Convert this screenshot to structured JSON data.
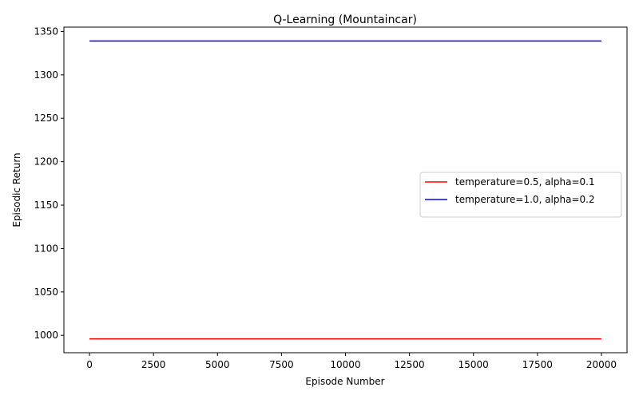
{
  "chart_data": {
    "type": "line",
    "title": "Q-Learning (Mountaincar)",
    "xlabel": "Episode Number",
    "ylabel": "Episodic Return",
    "xlim": [
      -1000,
      21000
    ],
    "ylim": [
      980,
      1355
    ],
    "x_ticks": [
      0,
      2500,
      5000,
      7500,
      10000,
      12500,
      15000,
      17500,
      20000
    ],
    "y_ticks": [
      1000,
      1050,
      1100,
      1150,
      1200,
      1250,
      1300,
      1350
    ],
    "grid": false,
    "legend_position": "center-right",
    "series": [
      {
        "name": "temperature=0.5, alpha=0.1",
        "color": "#ff0000",
        "x": [
          0,
          20000
        ],
        "y": [
          996,
          996
        ]
      },
      {
        "name": "temperature=1.0, alpha=0.2",
        "color": "#0000ff",
        "x": [
          0,
          20000
        ],
        "y": [
          1339,
          1339
        ]
      }
    ]
  }
}
